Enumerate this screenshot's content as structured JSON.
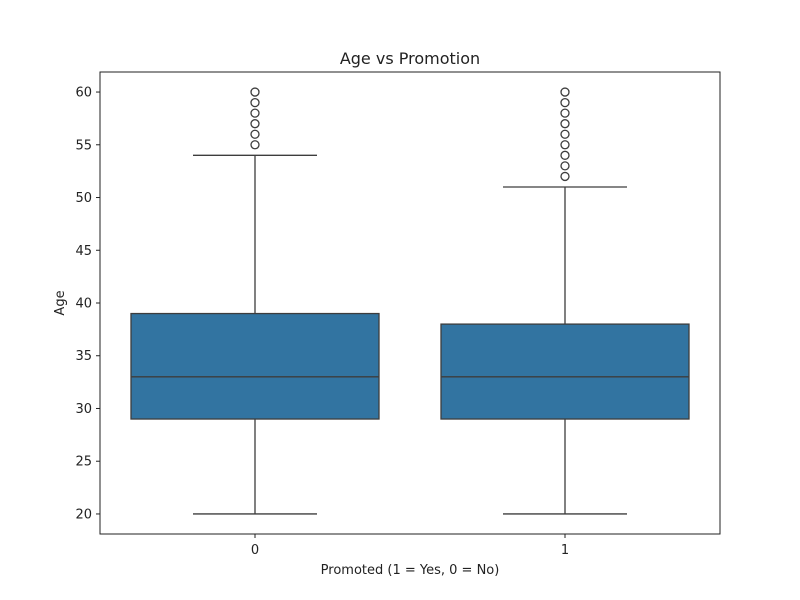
{
  "chart_data": {
    "type": "box",
    "title": "Age vs Promotion",
    "xlabel": "Promoted (1 = Yes, 0 = No)",
    "ylabel": "Age",
    "categories": [
      "0",
      "1"
    ],
    "y_ticks": [
      20,
      25,
      30,
      35,
      40,
      45,
      50,
      55,
      60
    ],
    "ylim": [
      18.1,
      61.9
    ],
    "grid": false,
    "boxes": [
      {
        "category": "0",
        "whisker_low": 20,
        "q1": 29,
        "median": 33,
        "q3": 39,
        "whisker_high": 54,
        "outliers": [
          55,
          56,
          57,
          58,
          59,
          60
        ]
      },
      {
        "category": "1",
        "whisker_low": 20,
        "q1": 29,
        "median": 33,
        "q3": 38,
        "whisker_high": 51,
        "outliers": [
          52,
          53,
          54,
          55,
          56,
          57,
          58,
          59,
          60
        ]
      }
    ],
    "colors": {
      "box_fill": "#3274a1",
      "line": "#3d3d3d"
    }
  }
}
